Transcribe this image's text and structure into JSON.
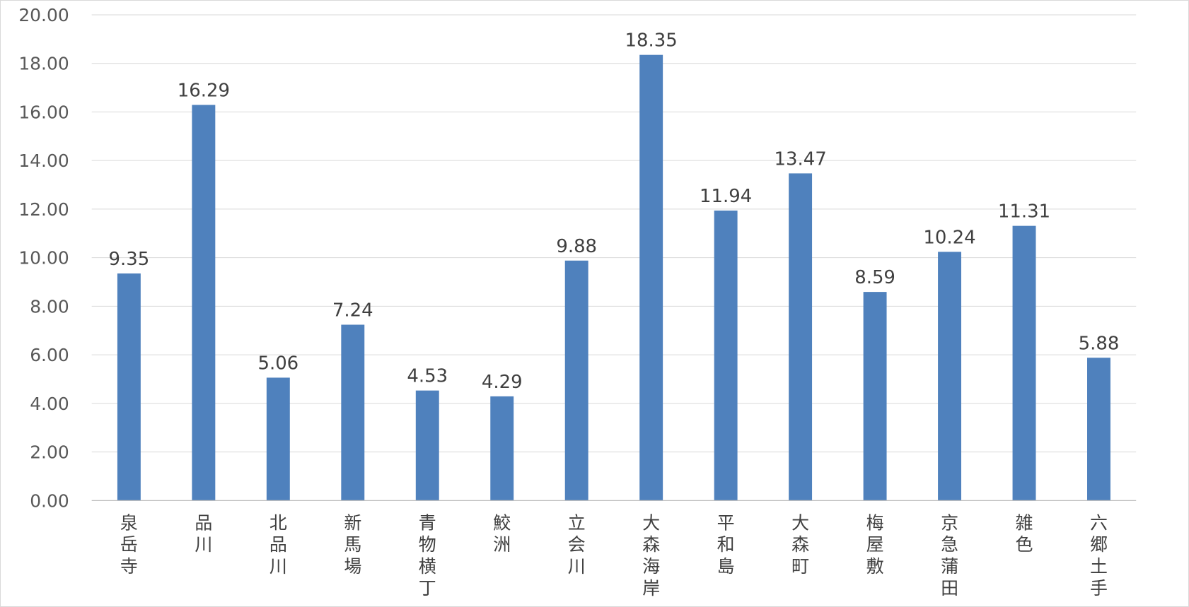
{
  "chart_data": {
    "type": "bar",
    "title": "",
    "xlabel": "",
    "ylabel": "",
    "ylim": [
      0,
      20
    ],
    "y_ticks": [
      "0.00",
      "2.00",
      "4.00",
      "6.00",
      "8.00",
      "10.00",
      "12.00",
      "14.00",
      "16.00",
      "18.00",
      "20.00"
    ],
    "grid": true,
    "legend": "none",
    "bar_color": "#4f81bd",
    "categories": [
      "泉岳寺",
      "品川",
      "北品川",
      "新馬場",
      "青物横丁",
      "鮫洲",
      "立会川",
      "大森海岸",
      "平和島",
      "大森町",
      "梅屋敷",
      "京急蒲田",
      "雑色",
      "六郷土手"
    ],
    "values": [
      9.35,
      16.29,
      5.06,
      7.24,
      4.53,
      4.29,
      9.88,
      18.35,
      11.94,
      13.47,
      8.59,
      10.24,
      11.31,
      5.88
    ],
    "value_labels": [
      "9.35",
      "16.29",
      "5.06",
      "7.24",
      "4.53",
      "4.29",
      "9.88",
      "18.35",
      "11.94",
      "13.47",
      "8.59",
      "10.24",
      "11.31",
      "5.88"
    ]
  }
}
